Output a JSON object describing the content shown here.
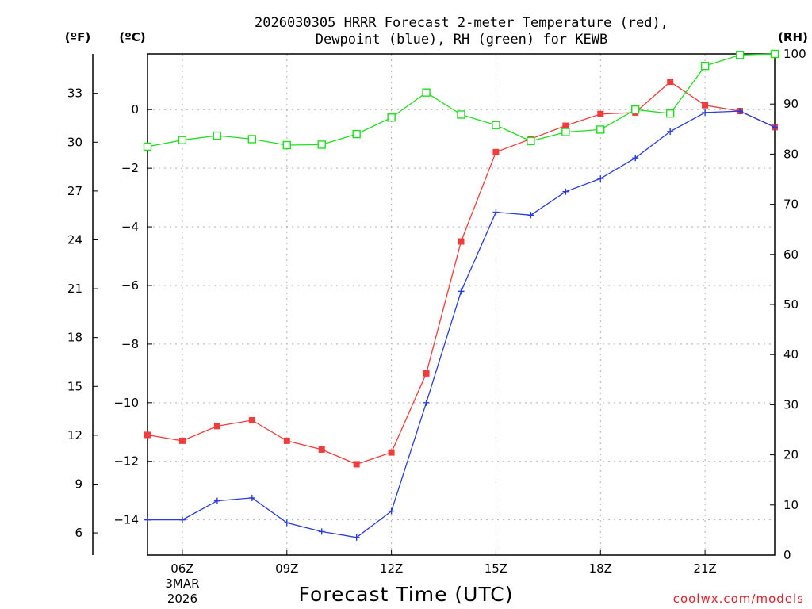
{
  "chart_data": {
    "type": "line",
    "title_line1": "2026030305 HRRR Forecast 2-meter Temperature (red),",
    "title_line2": "Dewpoint (blue), RH (green) for KEWB",
    "xlabel": "Forecast Time (UTC)",
    "credit": "coolwx.com/models",
    "units": {
      "fahrenheit": "(ºF)",
      "celsius": "(ºC)",
      "rh": "(RH)"
    },
    "x_hours": [
      5,
      6,
      7,
      8,
      9,
      10,
      11,
      12,
      13,
      14,
      15,
      16,
      17,
      18,
      19,
      20,
      21,
      22,
      23
    ],
    "xlim": [
      5,
      23
    ],
    "x_ticks": [
      {
        "hour": 6,
        "label": "06Z",
        "sub1": "3MAR",
        "sub2": "2026"
      },
      {
        "hour": 9,
        "label": "09Z"
      },
      {
        "hour": 12,
        "label": "12Z"
      },
      {
        "hour": 15,
        "label": "15Z"
      },
      {
        "hour": 18,
        "label": "18Z"
      },
      {
        "hour": 21,
        "label": "21Z"
      }
    ],
    "celsius_axis": {
      "ylim": [
        -15.2,
        1.9
      ],
      "ticks": [
        -14,
        -12,
        -10,
        -8,
        -6,
        -4,
        -2,
        0
      ],
      "labels": [
        "−14",
        "−12",
        "−10",
        "−8",
        "−6",
        "−4",
        "−2",
        "0"
      ]
    },
    "fahrenheit_axis": {
      "ticks": [
        6,
        9,
        12,
        15,
        18,
        21,
        24,
        27,
        30,
        33
      ],
      "labels": [
        "6",
        "9",
        "12",
        "15",
        "18",
        "21",
        "24",
        "27",
        "30",
        "33"
      ]
    },
    "rh_axis": {
      "ylim": [
        0,
        100
      ],
      "ticks": [
        0,
        10,
        20,
        30,
        40,
        50,
        60,
        70,
        80,
        90,
        100
      ],
      "labels": [
        "0",
        "10",
        "20",
        "30",
        "40",
        "50",
        "60",
        "70",
        "80",
        "90",
        "100"
      ]
    },
    "series": [
      {
        "name": "Temperature",
        "unit": "C",
        "color": "#f03c3c",
        "marker": "filled-square",
        "values": [
          -11.1,
          -11.3,
          -10.8,
          -10.6,
          -11.3,
          -11.6,
          -12.1,
          -11.7,
          -9.0,
          -4.5,
          -1.45,
          -1.0,
          -0.55,
          -0.15,
          -0.1,
          0.95,
          0.15,
          -0.05,
          -0.6
        ]
      },
      {
        "name": "Dewpoint",
        "unit": "C",
        "color": "#2a3cdc",
        "marker": "plus",
        "values": [
          -14.0,
          -14.0,
          -13.35,
          -13.25,
          -14.1,
          -14.4,
          -14.6,
          -13.7,
          -10.0,
          -6.2,
          -3.5,
          -3.6,
          -2.8,
          -2.35,
          -1.65,
          -0.75,
          -0.1,
          -0.05,
          -0.6
        ]
      },
      {
        "name": "RH",
        "unit": "%",
        "color": "#22dd22",
        "marker": "open-square",
        "values": [
          81.5,
          82.8,
          83.7,
          83.0,
          81.8,
          81.9,
          84.0,
          87.3,
          92.3,
          87.9,
          85.8,
          82.6,
          84.4,
          84.9,
          88.9,
          88.1,
          97.6,
          99.8,
          100.0
        ]
      }
    ]
  }
}
